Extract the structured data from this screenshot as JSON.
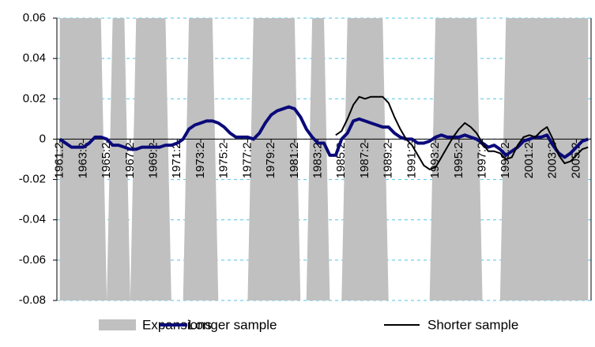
{
  "chart_data": {
    "type": "line",
    "xlim": [
      1961,
      2006.5
    ],
    "xticks": [
      {
        "value": 1961.25,
        "label": "1961:2"
      },
      {
        "value": 1963.25,
        "label": "1963:2"
      },
      {
        "value": 1965.25,
        "label": "1965:2"
      },
      {
        "value": 1967.25,
        "label": "1967:2"
      },
      {
        "value": 1969.25,
        "label": "1969:2"
      },
      {
        "value": 1971.25,
        "label": "1971:2"
      },
      {
        "value": 1973.25,
        "label": "1973:2"
      },
      {
        "value": 1975.25,
        "label": "1975:2"
      },
      {
        "value": 1977.25,
        "label": "1977:2"
      },
      {
        "value": 1979.25,
        "label": "1979:2"
      },
      {
        "value": 1981.25,
        "label": "1981:2"
      },
      {
        "value": 1983.25,
        "label": "1983:2"
      },
      {
        "value": 1985.25,
        "label": "1985:2"
      },
      {
        "value": 1987.25,
        "label": "1987:2"
      },
      {
        "value": 1989.25,
        "label": "1989:2"
      },
      {
        "value": 1991.25,
        "label": "1991:2"
      },
      {
        "value": 1993.25,
        "label": "1993:2"
      },
      {
        "value": 1995.25,
        "label": "1995:2"
      },
      {
        "value": 1997.25,
        "label": "1997:2"
      },
      {
        "value": 1999.25,
        "label": "1999:2"
      },
      {
        "value": 2001.25,
        "label": "2001:2"
      },
      {
        "value": 2003.25,
        "label": "2003:2"
      },
      {
        "value": 2005.25,
        "label": "2005:2"
      }
    ],
    "ylim": [
      -0.08,
      0.06
    ],
    "yticks": [
      -0.08,
      -0.06,
      -0.04,
      -0.02,
      0,
      0.02,
      0.04,
      0.06
    ],
    "y2lim": [
      0,
      1
    ],
    "grid": true,
    "legend": "bottom",
    "x": [
      1961.25,
      1961.75,
      1962.25,
      1962.75,
      1963.25,
      1963.75,
      1964.25,
      1964.75,
      1965.25,
      1965.75,
      1966.25,
      1966.75,
      1967.25,
      1967.75,
      1968.25,
      1968.75,
      1969.25,
      1969.75,
      1970.25,
      1970.75,
      1971.25,
      1971.75,
      1972.25,
      1972.75,
      1973.25,
      1973.75,
      1974.25,
      1974.75,
      1975.25,
      1975.75,
      1976.25,
      1976.75,
      1977.25,
      1977.75,
      1978.25,
      1978.75,
      1979.25,
      1979.75,
      1980.25,
      1980.75,
      1981.25,
      1981.75,
      1982.25,
      1982.75,
      1983.25,
      1983.75,
      1984.25,
      1984.75,
      1985.25,
      1985.75,
      1986.25,
      1986.75,
      1987.25,
      1987.75,
      1988.25,
      1988.75,
      1989.25,
      1989.75,
      1990.25,
      1990.75,
      1991.25,
      1991.75,
      1992.25,
      1992.75,
      1993.25,
      1993.75,
      1994.25,
      1994.75,
      1995.25,
      1995.75,
      1996.25,
      1996.75,
      1997.25,
      1997.75,
      1998.25,
      1998.75,
      1999.25,
      1999.75,
      2000.25,
      2000.75,
      2001.25,
      2001.75,
      2002.25,
      2002.75,
      2003.25,
      2003.75,
      2004.25,
      2004.75,
      2005.25,
      2005.75,
      2006.25
    ],
    "series": [
      {
        "name": "Expansions",
        "color": "#c0c0c0",
        "axis": "y2",
        "kind": "area",
        "values": [
          1,
          1,
          1,
          1,
          1,
          1,
          1,
          1,
          0,
          1,
          1,
          1,
          0,
          1,
          1,
          1,
          1,
          1,
          1,
          0,
          0,
          0,
          1,
          1,
          1,
          1,
          1,
          0,
          0,
          0,
          0,
          0,
          0,
          1,
          1,
          1,
          1,
          1,
          1,
          1,
          1,
          0,
          0,
          1,
          1,
          1,
          0,
          0,
          0,
          1,
          1,
          1,
          1,
          1,
          1,
          1,
          0,
          0,
          0,
          0,
          0,
          0,
          0,
          0,
          1,
          1,
          1,
          1,
          1,
          1,
          1,
          1,
          0,
          0,
          0,
          0,
          1,
          1,
          1,
          1,
          1,
          1,
          1,
          1,
          1,
          1,
          1,
          1,
          1,
          1,
          1
        ]
      },
      {
        "name": "Longer sample",
        "color": "#0a0a7a",
        "kind": "line",
        "width": 4,
        "values": [
          0,
          -0.002,
          -0.004,
          -0.004,
          -0.004,
          -0.002,
          0.001,
          0.001,
          0,
          -0.003,
          -0.003,
          -0.004,
          -0.005,
          -0.005,
          -0.004,
          -0.004,
          -0.004,
          -0.004,
          -0.003,
          -0.003,
          -0.002,
          0,
          0.005,
          0.007,
          0.008,
          0.009,
          0.009,
          0.008,
          0.006,
          0.003,
          0.001,
          0.001,
          0.001,
          0,
          0.003,
          0.008,
          0.012,
          0.014,
          0.015,
          0.016,
          0.015,
          0.011,
          0.005,
          0.001,
          -0.002,
          -0.002,
          -0.008,
          -0.008,
          0,
          0.003,
          0.009,
          0.01,
          0.009,
          0.008,
          0.007,
          0.006,
          0.006,
          0.003,
          0.001,
          0,
          0,
          -0.002,
          -0.002,
          -0.001,
          0.001,
          0.002,
          0.001,
          0.001,
          0.001,
          0.002,
          0.001,
          0,
          -0.002,
          -0.004,
          -0.003,
          -0.005,
          -0.008,
          -0.006,
          -0.004,
          -0.001,
          0,
          0.001,
          0.001,
          0.002,
          -0.003,
          -0.007,
          -0.009,
          -0.007,
          -0.004,
          -0.001,
          0
        ]
      },
      {
        "name": "Shorter sample",
        "color": "#000000",
        "kind": "line",
        "width": 2,
        "values": [
          null,
          null,
          null,
          null,
          null,
          null,
          null,
          null,
          null,
          null,
          null,
          null,
          null,
          null,
          null,
          null,
          null,
          null,
          null,
          null,
          null,
          null,
          null,
          null,
          null,
          null,
          null,
          null,
          null,
          null,
          null,
          null,
          null,
          null,
          null,
          null,
          null,
          null,
          null,
          null,
          null,
          null,
          null,
          null,
          null,
          null,
          null,
          0.002,
          0.004,
          0.01,
          0.017,
          0.021,
          0.02,
          0.021,
          0.021,
          0.021,
          0.018,
          0.011,
          0.005,
          0,
          -0.003,
          -0.008,
          -0.013,
          -0.015,
          -0.014,
          -0.009,
          -0.004,
          0.001,
          0.005,
          0.008,
          0.006,
          0.003,
          -0.002,
          -0.006,
          -0.006,
          -0.007,
          -0.01,
          -0.009,
          -0.003,
          0.001,
          0.002,
          0.001,
          0.004,
          0.006,
          0,
          -0.008,
          -0.012,
          -0.011,
          -0.008,
          -0.005,
          -0.004
        ]
      }
    ]
  }
}
